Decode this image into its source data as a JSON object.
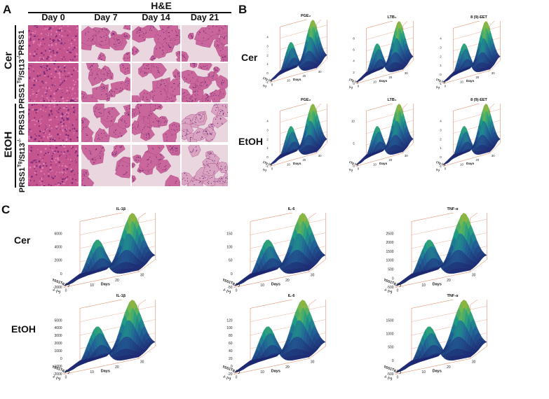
{
  "panel_a": {
    "letter": "A",
    "title": "H&E",
    "days": [
      "Day 0",
      "Day 7",
      "Day 14",
      "Day 21"
    ],
    "groups": [
      {
        "label": "Cer",
        "rows": [
          "PRSS1",
          "PRSS1Tg/St13-/-"
        ]
      },
      {
        "label": "EtOH",
        "rows": [
          "PRSS1",
          "PRSS1Tg/St13-/-"
        ]
      }
    ],
    "row_label_parts": {
      "base": "PRSS1",
      "sup": "Tg",
      "mid": "/St13",
      "sup2": "-/-"
    }
  },
  "panel_b": {
    "letter": "B",
    "rows": [
      {
        "group": "Cer",
        "plots": [
          {
            "title": "PGE₂",
            "z_ticks": [
              "4",
              "3",
              "2",
              "1",
              "0",
              "-1"
            ]
          },
          {
            "title": "LTB₄",
            "z_ticks": [
              "8",
              "6",
              "4",
              "2",
              "0"
            ]
          },
          {
            "title": "8 (9)-EET",
            "z_ticks": [
              "4",
              "3",
              "2",
              "1",
              "0",
              "-1"
            ]
          }
        ]
      },
      {
        "group": "EtOH",
        "plots": [
          {
            "title": "PGE₂",
            "z_ticks": [
              "4",
              "3",
              "2",
              "1",
              "0",
              "-1"
            ]
          },
          {
            "title": "LTB₄",
            "z_ticks": [
              "10",
              "5",
              "0"
            ]
          },
          {
            "title": "8 (9)-EET",
            "z_ticks": [
              "4",
              "3",
              "2",
              "1",
              "0",
              "-1"
            ]
          }
        ]
      }
    ],
    "z_label": "Concentration (ng/g)",
    "x_label": "Days",
    "x_ticks": [
      "0",
      "10",
      "20",
      "30"
    ],
    "y_ticks": [
      "PRSS1Tg (+)",
      "PRSS1Tg/St13-/- (+)"
    ]
  },
  "panel_c": {
    "letter": "C",
    "rows": [
      {
        "group": "Cer",
        "plots": [
          {
            "title": "IL-1β",
            "z_ticks": [
              "6000",
              "4000",
              "2000",
              "0",
              "-2000"
            ]
          },
          {
            "title": "IL-6",
            "z_ticks": [
              "150",
              "100",
              "50",
              "0",
              "-50"
            ]
          },
          {
            "title": "TNF-α",
            "z_ticks": [
              "2500",
              "2000",
              "1500",
              "1000",
              "500",
              "0",
              "-500"
            ]
          }
        ]
      },
      {
        "group": "EtOH",
        "plots": [
          {
            "title": "IL-1β",
            "z_ticks": [
              "5000",
              "4000",
              "3000",
              "2000",
              "1000",
              "0",
              "-1000",
              "-2000"
            ]
          },
          {
            "title": "IL-6",
            "z_ticks": [
              "120",
              "100",
              "80",
              "60",
              "40",
              "20",
              "0",
              "-20"
            ]
          },
          {
            "title": "TNF-α",
            "z_ticks": [
              "1500",
              "1000",
              "500",
              "0",
              "-500"
            ]
          }
        ]
      }
    ],
    "z_label": "Concentration (pg/mg)",
    "x_label": "Days",
    "x_ticks": [
      "0",
      "10",
      "20",
      "30"
    ],
    "y_ticks": [
      "PRSS1Tg (+)",
      "PRSS1Tg/St13-/- (+)"
    ]
  },
  "colors": {
    "surface_low": "#1b2a6e",
    "surface_mid": "#1f9a8a",
    "surface_high": "#b8a22a",
    "grid": "#e07a55"
  }
}
